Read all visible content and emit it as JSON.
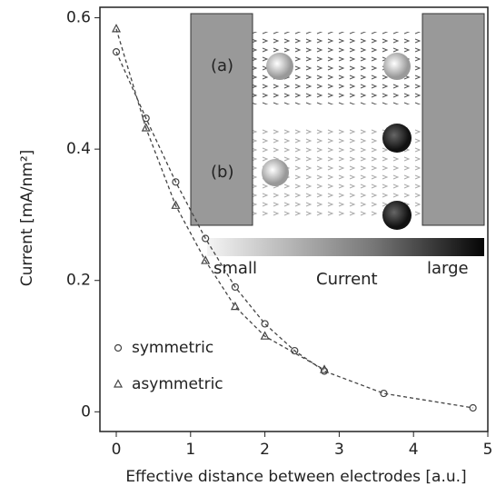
{
  "chart_data": {
    "type": "line",
    "x_label": "Effective distance between electrodes [a.u.]",
    "y_label": "Current [mA/nm²]",
    "xlim": [
      -0.22,
      5
    ],
    "ylim": [
      -0.03,
      0.616
    ],
    "xticks": [
      0,
      1,
      2,
      3,
      4,
      5
    ],
    "yticks": [
      0,
      0.2,
      0.4,
      0.6
    ],
    "legend": "lower left",
    "series": [
      {
        "name": "symmetric",
        "marker": "circle",
        "color": "#444",
        "x": [
          0,
          0.4,
          0.8,
          1.2,
          1.6,
          2.0,
          2.4,
          2.8,
          3.6,
          4.8
        ],
        "values": [
          0.548,
          0.447,
          0.35,
          0.264,
          0.19,
          0.134,
          0.093,
          0.062,
          0.028,
          0.006
        ]
      },
      {
        "name": "asymmetric",
        "marker": "triangle",
        "color": "#444",
        "x": [
          0,
          0.4,
          0.8,
          1.2,
          1.6,
          2.0,
          2.8
        ],
        "values": [
          0.583,
          0.432,
          0.314,
          0.23,
          0.16,
          0.115,
          0.064
        ]
      }
    ],
    "inset": {
      "label_a": "(a)",
      "label_b": "(b)",
      "bar_left": "small",
      "bar_title": "Current",
      "bar_right": "large"
    }
  }
}
